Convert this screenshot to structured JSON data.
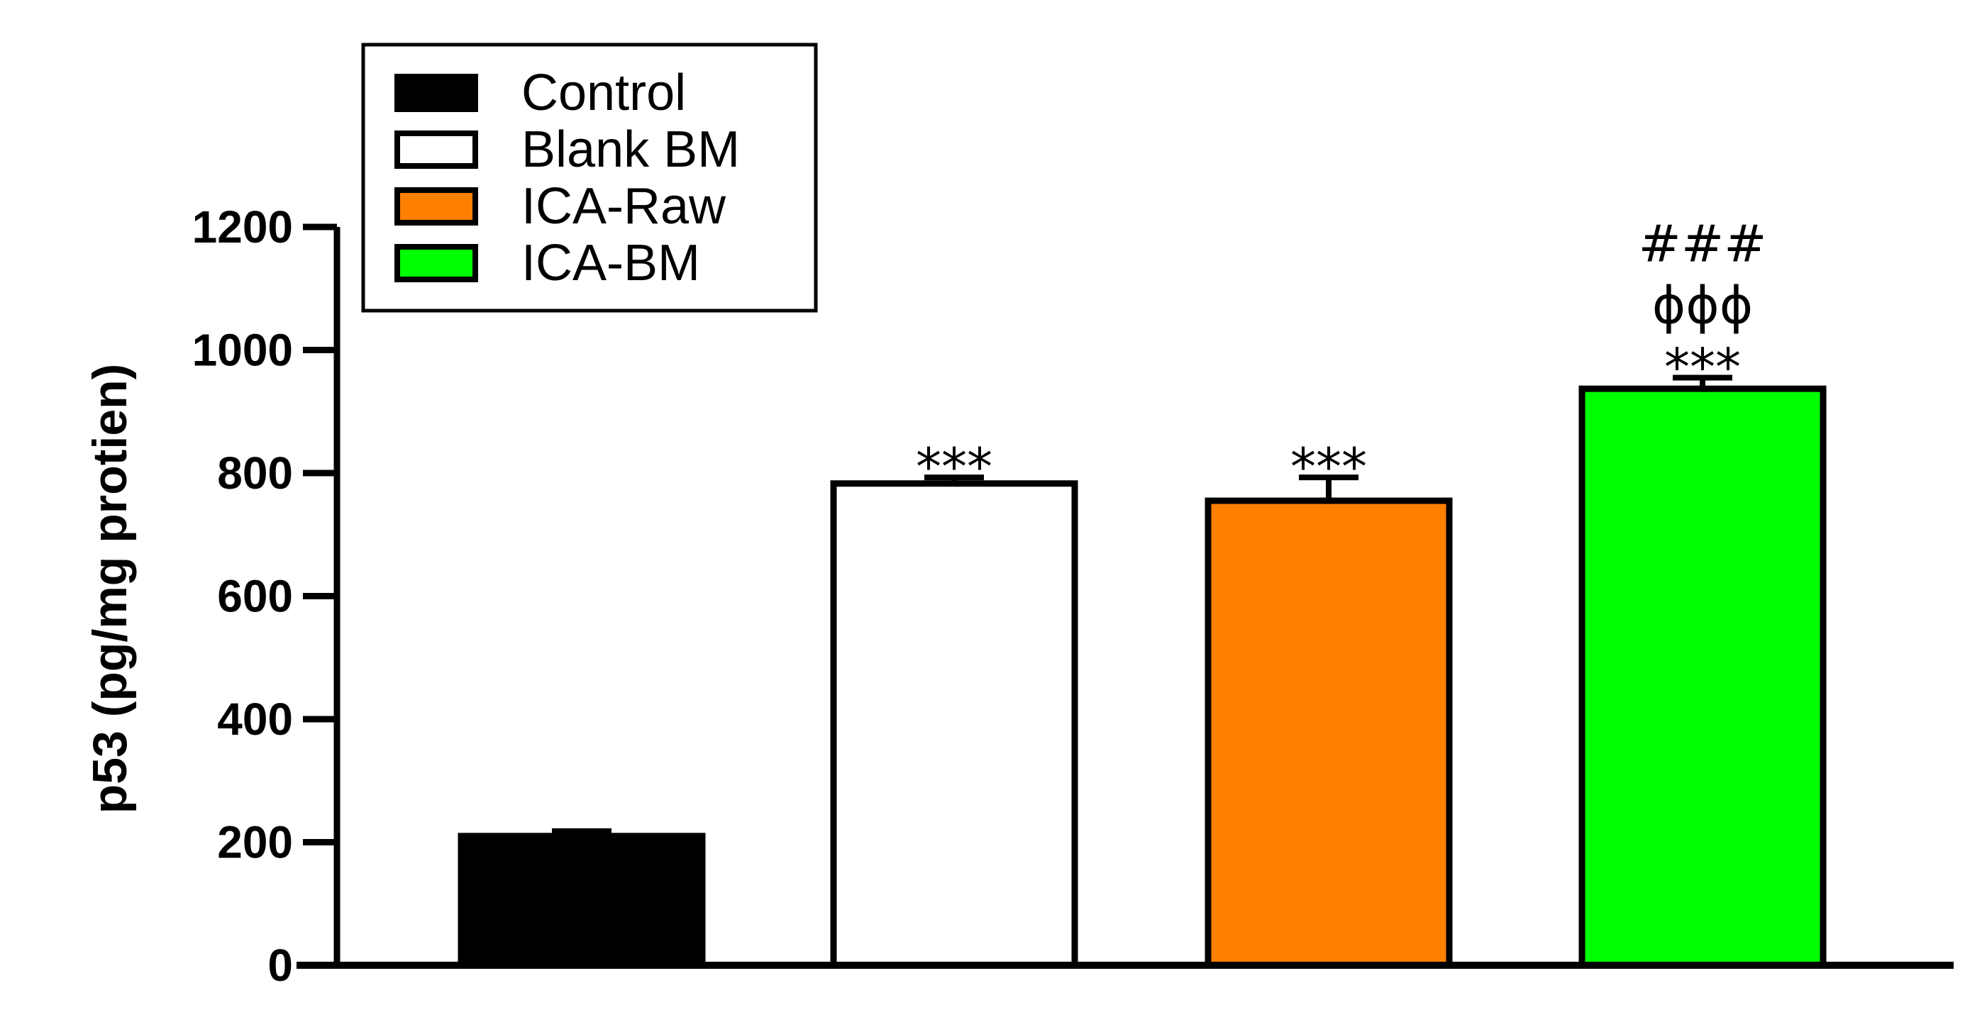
{
  "chart_data": {
    "type": "bar",
    "title": "",
    "xlabel": "",
    "ylabel": "p53 (pg/mg protien)",
    "ylim": [
      0,
      1200
    ],
    "yticks": [
      0,
      200,
      400,
      600,
      800,
      1000,
      1200
    ],
    "grid": false,
    "legend_position": "top-left",
    "categories": [
      "Control",
      "Blank BM",
      "ICA-Raw",
      "ICA-BM"
    ],
    "values": [
      210,
      783,
      755,
      937
    ],
    "errors": [
      8,
      10,
      38,
      18
    ],
    "colors": [
      "#000000",
      "#ffffff",
      "#ff8000",
      "#00ff00"
    ],
    "annotations": [
      [],
      [
        "***"
      ],
      [
        "***"
      ],
      [
        "***",
        "ϕϕϕ",
        "###"
      ]
    ]
  }
}
